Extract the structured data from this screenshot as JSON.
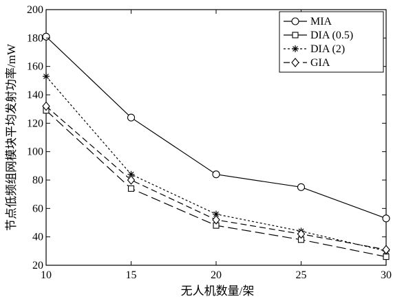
{
  "chart_data": {
    "type": "line",
    "title": "",
    "xlabel": "无人机数量/架",
    "ylabel": "节点低频组网模块平均发射功率/mW",
    "x": [
      10,
      15,
      20,
      25,
      30
    ],
    "xlim": [
      10,
      30
    ],
    "ylim": [
      20,
      200
    ],
    "xticks": [
      10,
      15,
      20,
      25,
      30
    ],
    "yticks": [
      20,
      40,
      60,
      80,
      100,
      120,
      140,
      160,
      180,
      200
    ],
    "grid": false,
    "legend_position": "top-right",
    "series": [
      {
        "name": "MIA",
        "values": [
          181,
          124,
          84,
          75,
          53
        ],
        "marker": "circle",
        "line": "solid"
      },
      {
        "name": "DIA (0.5)",
        "values": [
          129,
          74,
          48,
          38,
          26
        ],
        "marker": "square",
        "line": "long-dash"
      },
      {
        "name": "DIA (2)",
        "values": [
          153,
          84,
          56,
          44,
          30
        ],
        "marker": "asterisk",
        "line": "dotted"
      },
      {
        "name": "GIA",
        "values": [
          132,
          80,
          52,
          42,
          31
        ],
        "marker": "diamond",
        "line": "dash"
      }
    ]
  }
}
